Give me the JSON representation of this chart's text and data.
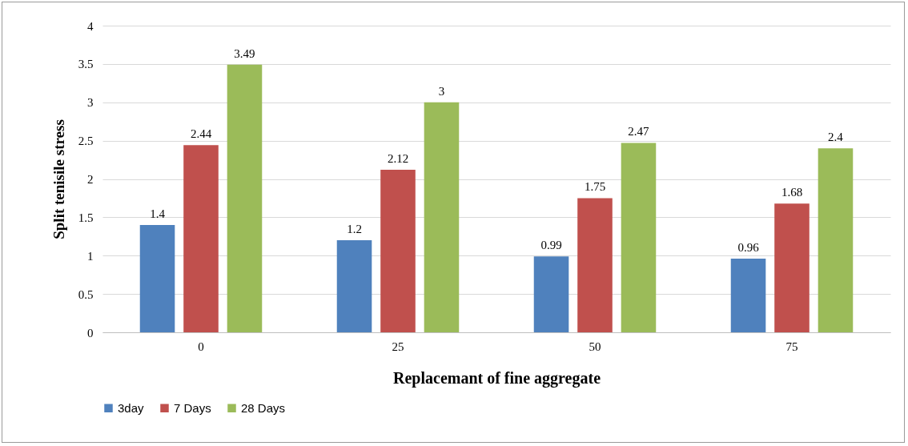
{
  "chart_data": {
    "type": "bar",
    "xlabel": "Replacemant of fine aggregate",
    "ylabel": "Split tenisile stress",
    "categories": [
      "0",
      "25",
      "50",
      "75"
    ],
    "series": [
      {
        "name": "3day",
        "color": "#4f81bd",
        "values": [
          1.4,
          1.2,
          0.99,
          0.96
        ]
      },
      {
        "name": "7 Days",
        "color": "#c0504d",
        "values": [
          2.44,
          2.12,
          1.75,
          1.68
        ]
      },
      {
        "name": "28 Days",
        "color": "#9bbb59",
        "values": [
          3.49,
          3,
          2.47,
          2.4
        ]
      }
    ],
    "ylim": [
      0,
      4
    ],
    "yticks": [
      0,
      0.5,
      1,
      1.5,
      2,
      2.5,
      3,
      3.5,
      4
    ],
    "grid": "y",
    "legend": "bottom",
    "data_labels": true
  }
}
